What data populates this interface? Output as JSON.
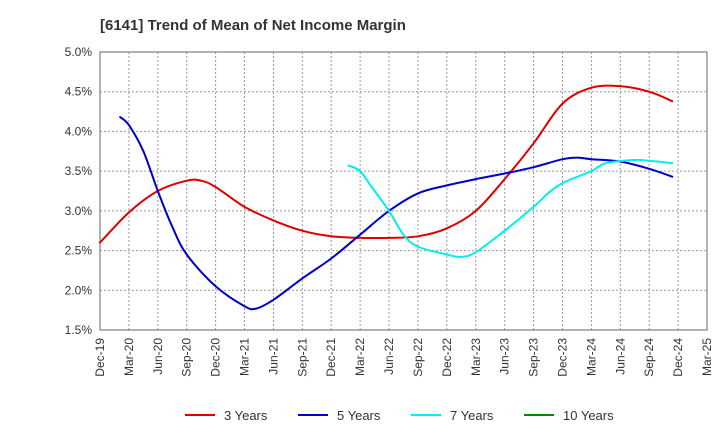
{
  "chart_data": {
    "type": "line",
    "title": "[6141]  Trend of Mean of Net Income Margin",
    "xlabel": "",
    "ylabel": "",
    "x_ticks": [
      "Dec-19",
      "Mar-20",
      "Jun-20",
      "Sep-20",
      "Dec-20",
      "Mar-21",
      "Jun-21",
      "Sep-21",
      "Dec-21",
      "Mar-22",
      "Jun-22",
      "Sep-22",
      "Dec-22",
      "Mar-23",
      "Jun-23",
      "Sep-23",
      "Dec-23",
      "Mar-24",
      "Jun-24",
      "Sep-24",
      "Dec-24",
      "Mar-25"
    ],
    "y_ticks": [
      "1.5%",
      "2.0%",
      "2.5%",
      "3.0%",
      "3.5%",
      "4.0%",
      "4.5%",
      "5.0%"
    ],
    "ylim": [
      1.5,
      5.0
    ],
    "grid": true,
    "legend_position": "bottom",
    "series": [
      {
        "name": "3 Years",
        "color": "#dd0000",
        "points": [
          [
            0,
            2.6
          ],
          [
            1,
            2.98
          ],
          [
            2,
            3.25
          ],
          [
            3,
            3.38
          ],
          [
            3.5,
            3.38
          ],
          [
            4,
            3.3
          ],
          [
            5,
            3.05
          ],
          [
            6,
            2.88
          ],
          [
            7,
            2.75
          ],
          [
            8,
            2.68
          ],
          [
            9,
            2.66
          ],
          [
            10,
            2.66
          ],
          [
            11,
            2.68
          ],
          [
            12,
            2.78
          ],
          [
            13,
            3.0
          ],
          [
            14,
            3.4
          ],
          [
            15,
            3.85
          ],
          [
            16,
            4.35
          ],
          [
            17,
            4.55
          ],
          [
            18,
            4.57
          ],
          [
            19,
            4.5
          ],
          [
            19.8,
            4.38
          ]
        ]
      },
      {
        "name": "5 Years",
        "color": "#0000cc",
        "points": [
          [
            0.7,
            4.18
          ],
          [
            1,
            4.08
          ],
          [
            1.5,
            3.75
          ],
          [
            2,
            3.25
          ],
          [
            2.5,
            2.8
          ],
          [
            3,
            2.45
          ],
          [
            4,
            2.05
          ],
          [
            5,
            1.8
          ],
          [
            5.4,
            1.77
          ],
          [
            6,
            1.88
          ],
          [
            7,
            2.15
          ],
          [
            8,
            2.4
          ],
          [
            9,
            2.7
          ],
          [
            10,
            3.0
          ],
          [
            11,
            3.22
          ],
          [
            12,
            3.32
          ],
          [
            13,
            3.4
          ],
          [
            14,
            3.47
          ],
          [
            15,
            3.55
          ],
          [
            16,
            3.65
          ],
          [
            16.5,
            3.67
          ],
          [
            17,
            3.65
          ],
          [
            18,
            3.62
          ],
          [
            19,
            3.53
          ],
          [
            19.8,
            3.43
          ]
        ]
      },
      {
        "name": "7 Years",
        "color": "#00eeee",
        "points": [
          [
            8.6,
            3.57
          ],
          [
            9,
            3.5
          ],
          [
            9.4,
            3.3
          ],
          [
            10,
            3.0
          ],
          [
            10.5,
            2.7
          ],
          [
            11,
            2.55
          ],
          [
            12,
            2.45
          ],
          [
            12.5,
            2.42
          ],
          [
            13,
            2.48
          ],
          [
            14,
            2.75
          ],
          [
            15,
            3.05
          ],
          [
            15.5,
            3.22
          ],
          [
            16,
            3.35
          ],
          [
            17,
            3.5
          ],
          [
            17.5,
            3.6
          ],
          [
            18.5,
            3.64
          ],
          [
            19,
            3.63
          ],
          [
            19.8,
            3.6
          ]
        ]
      },
      {
        "name": "10 Years",
        "color": "#008800",
        "points": []
      }
    ]
  }
}
